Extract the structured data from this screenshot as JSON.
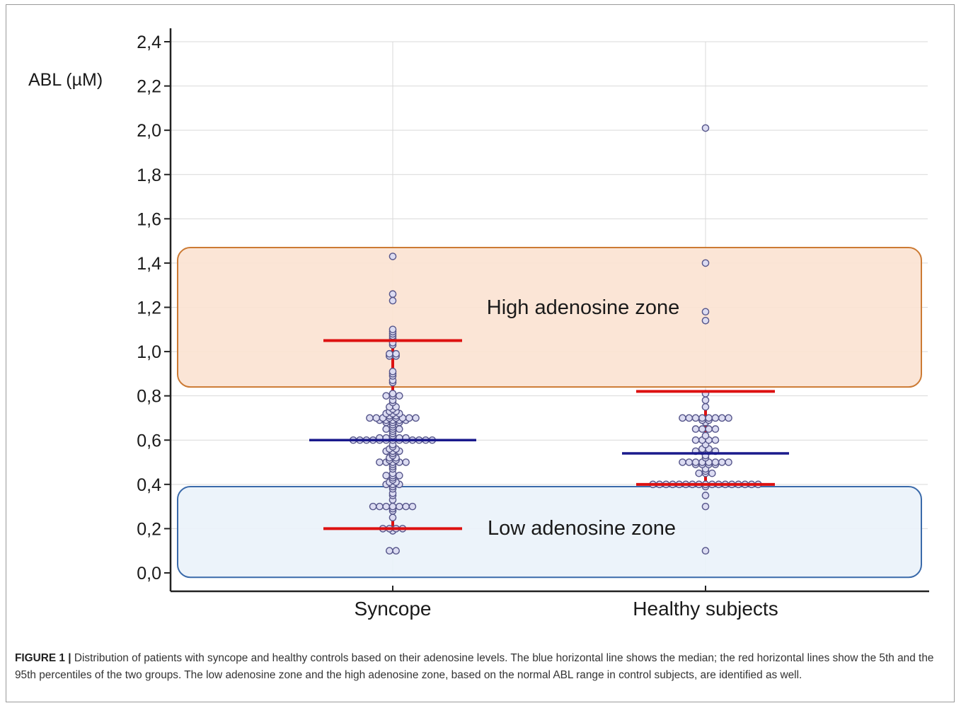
{
  "chart_data": {
    "type": "scatter",
    "ylabel": "ABL (µM)",
    "ylim": [
      0.0,
      2.4
    ],
    "yticks": [
      "0,0",
      "0,2",
      "0,4",
      "0,6",
      "0,8",
      "1,0",
      "1,2",
      "1,4",
      "1,6",
      "1,8",
      "2,0",
      "2,2",
      "2,4"
    ],
    "categories": [
      "Syncope",
      "Healthy subjects"
    ],
    "grid": true,
    "colors": {
      "median": "#1a1a8c",
      "percentile": "#dd1111",
      "point_edge": "#55558a",
      "point_fill": "#dcdcf2",
      "high_zone_fill": "#fbe3d3",
      "high_zone_edge": "#cc7a33",
      "low_zone_fill": "#eaf2fa",
      "low_zone_edge": "#3a6aaa"
    },
    "zones": [
      {
        "label": "High adenosine zone",
        "ymin": 0.84,
        "ymax": 1.47
      },
      {
        "label": "Low adenosine zone",
        "ymin": -0.02,
        "ymax": 0.39
      }
    ],
    "groups": [
      {
        "name": "Syncope",
        "median": 0.6,
        "p5": 0.2,
        "p95": 1.05,
        "values": [
          1.43,
          1.26,
          1.23,
          1.1,
          1.09,
          1.08,
          1.07,
          1.06,
          1.04,
          1.03,
          0.99,
          0.99,
          0.98,
          0.98,
          0.91,
          0.9,
          0.89,
          0.87,
          0.86,
          0.81,
          0.8,
          0.8,
          0.8,
          0.78,
          0.77,
          0.75,
          0.75,
          0.74,
          0.73,
          0.73,
          0.72,
          0.72,
          0.72,
          0.71,
          0.71,
          0.7,
          0.7,
          0.7,
          0.7,
          0.7,
          0.7,
          0.7,
          0.7,
          0.69,
          0.69,
          0.69,
          0.69,
          0.69,
          0.68,
          0.68,
          0.68,
          0.67,
          0.66,
          0.65,
          0.65,
          0.65,
          0.64,
          0.63,
          0.62,
          0.61,
          0.61,
          0.61,
          0.61,
          0.61,
          0.6,
          0.6,
          0.6,
          0.6,
          0.6,
          0.6,
          0.6,
          0.6,
          0.6,
          0.6,
          0.6,
          0.6,
          0.6,
          0.58,
          0.57,
          0.56,
          0.56,
          0.55,
          0.55,
          0.55,
          0.54,
          0.53,
          0.52,
          0.52,
          0.51,
          0.51,
          0.5,
          0.5,
          0.5,
          0.5,
          0.5,
          0.49,
          0.48,
          0.47,
          0.45,
          0.44,
          0.44,
          0.44,
          0.43,
          0.42,
          0.41,
          0.41,
          0.4,
          0.4,
          0.4,
          0.39,
          0.38,
          0.36,
          0.35,
          0.33,
          0.3,
          0.3,
          0.3,
          0.3,
          0.3,
          0.3,
          0.3,
          0.29,
          0.28,
          0.25,
          0.2,
          0.2,
          0.2,
          0.2,
          0.19,
          0.1,
          0.1
        ]
      },
      {
        "name": "Healthy subjects",
        "median": 0.54,
        "p5": 0.4,
        "p95": 0.82,
        "values": [
          2.01,
          1.4,
          1.18,
          1.14,
          0.81,
          0.78,
          0.75,
          0.7,
          0.7,
          0.7,
          0.7,
          0.7,
          0.7,
          0.7,
          0.7,
          0.69,
          0.69,
          0.68,
          0.65,
          0.65,
          0.65,
          0.65,
          0.62,
          0.6,
          0.6,
          0.6,
          0.6,
          0.58,
          0.56,
          0.56,
          0.55,
          0.55,
          0.55,
          0.55,
          0.53,
          0.52,
          0.5,
          0.5,
          0.5,
          0.5,
          0.5,
          0.5,
          0.5,
          0.5,
          0.49,
          0.49,
          0.49,
          0.49,
          0.47,
          0.46,
          0.45,
          0.45,
          0.45,
          0.4,
          0.4,
          0.4,
          0.4,
          0.4,
          0.4,
          0.4,
          0.4,
          0.4,
          0.4,
          0.4,
          0.4,
          0.4,
          0.4,
          0.4,
          0.4,
          0.4,
          0.39,
          0.35,
          0.3,
          0.1
        ]
      }
    ]
  },
  "caption": {
    "label": "FIGURE 1 |",
    "text": " Distribution of patients with syncope and healthy controls based on their adenosine levels. The blue horizontal line shows the median; the red horizontal lines show the 5th and the 95th percentiles of the two groups. The low adenosine zone and the high adenosine zone, based on the normal ABL range in control subjects, are identified as well."
  }
}
